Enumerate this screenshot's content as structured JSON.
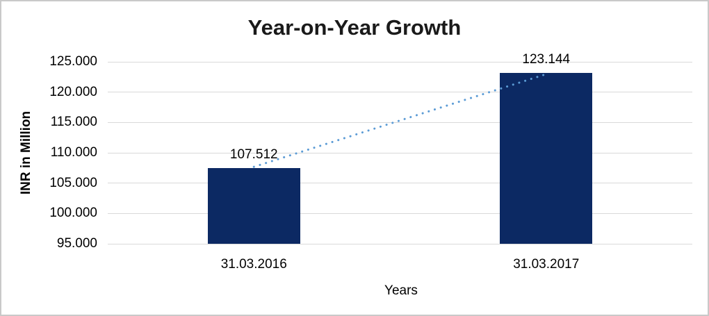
{
  "window": {
    "background_color": "#ffffff",
    "frame_border_color": "#c9c9c9"
  },
  "chart_data": {
    "type": "bar",
    "title": "Year-on-Year Growth",
    "xlabel": "Years",
    "ylabel": "INR in Million",
    "categories": [
      "31.03.2016",
      "31.03.2017"
    ],
    "series": [
      {
        "name": "INR in Million",
        "type": "bar",
        "values": [
          107512,
          123144
        ],
        "value_labels": [
          "107.512",
          "123.144"
        ],
        "color": "#0c2963"
      },
      {
        "name": "trend",
        "type": "dotted-line",
        "values": [
          107512,
          123144
        ],
        "color": "#5b9bd5"
      }
    ],
    "ylim": [
      95000,
      125000
    ],
    "yticks": [
      {
        "value": 95000,
        "label": "95.000"
      },
      {
        "value": 100000,
        "label": "100.000"
      },
      {
        "value": 105000,
        "label": "105.000"
      },
      {
        "value": 110000,
        "label": "110.000"
      },
      {
        "value": 115000,
        "label": "115.000"
      },
      {
        "value": 120000,
        "label": "120.000"
      },
      {
        "value": 125000,
        "label": "125.000"
      }
    ],
    "grid": true,
    "gridline_color": "#d9d9d9",
    "legend": "none",
    "text_color": "#000000",
    "title_color": "#1a1a1a"
  }
}
